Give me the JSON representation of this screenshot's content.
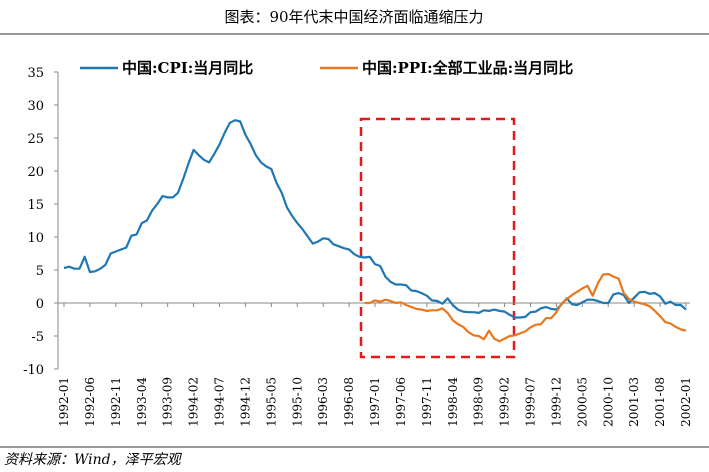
{
  "chart_data": {
    "type": "line",
    "title": "图表：90年代末中国经济面临通缩压力",
    "source": "资料来源：Wind，泽平宏观",
    "categories": [
      "1992-01",
      null,
      null,
      null,
      null,
      "1992-06",
      null,
      null,
      null,
      null,
      "1992-11",
      null,
      null,
      null,
      null,
      "1993-04",
      null,
      null,
      null,
      null,
      "1993-09",
      null,
      null,
      null,
      null,
      "1994-02",
      null,
      null,
      null,
      null,
      "1994-07",
      null,
      null,
      null,
      null,
      "1994-12",
      null,
      null,
      null,
      null,
      "1995-05",
      null,
      null,
      null,
      null,
      "1995-10",
      null,
      null,
      null,
      null,
      "1996-03",
      null,
      null,
      null,
      null,
      "1996-08",
      null,
      null,
      null,
      null,
      "1997-01",
      null,
      null,
      null,
      null,
      "1997-06",
      null,
      null,
      null,
      null,
      "1997-11",
      null,
      null,
      null,
      null,
      "1998-04",
      null,
      null,
      null,
      null,
      "1998-09",
      null,
      null,
      null,
      null,
      "1999-02",
      null,
      null,
      null,
      null,
      "1999-07",
      null,
      null,
      null,
      null,
      "1999-12",
      null,
      null,
      null,
      null,
      "2000-05",
      null,
      null,
      null,
      null,
      "2000-10",
      null,
      null,
      null,
      null,
      "2001-03",
      null,
      null,
      null,
      null,
      "2001-08",
      null,
      null,
      null,
      null,
      "2002-01"
    ],
    "series": [
      {
        "name": "中国:CPI:当月同比",
        "color": "#1f77b4",
        "values": [
          5.3,
          5.5,
          5.2,
          5.2,
          7.0,
          4.7,
          4.8,
          5.2,
          5.8,
          7.5,
          7.8,
          8.1,
          8.4,
          10.2,
          10.4,
          12.1,
          12.5,
          14.0,
          15.0,
          16.2,
          16.0,
          16.0,
          16.7,
          18.8,
          21.1,
          23.2,
          22.4,
          21.7,
          21.3,
          22.6,
          24.0,
          25.8,
          27.3,
          27.7,
          27.5,
          25.5,
          24.1,
          22.4,
          21.3,
          20.7,
          20.3,
          18.2,
          16.7,
          14.5,
          13.2,
          12.1,
          11.2,
          10.1,
          9.0,
          9.3,
          9.8,
          9.7,
          8.9,
          8.6,
          8.3,
          8.1,
          7.4,
          7.0,
          6.9,
          7.0,
          5.9,
          5.6,
          4.0,
          3.2,
          2.8,
          2.8,
          2.7,
          1.9,
          1.8,
          1.5,
          1.1,
          0.4,
          0.3,
          -0.1,
          0.7,
          -0.3,
          -1.0,
          -1.3,
          -1.4,
          -1.4,
          -1.5,
          -1.1,
          -1.2,
          -1.0,
          -1.2,
          -1.3,
          -1.8,
          -2.2,
          -2.2,
          -2.1,
          -1.4,
          -1.3,
          -0.8,
          -0.6,
          -0.9,
          -1.0,
          -0.2,
          0.7,
          -0.2,
          -0.3,
          0.1,
          0.5,
          0.5,
          0.3,
          0.0,
          0.0,
          1.3,
          1.5,
          1.2,
          0.0,
          0.8,
          1.6,
          1.7,
          1.4,
          1.5,
          1.0,
          -0.1,
          0.2,
          -0.3,
          -0.3,
          -1.0
        ]
      },
      {
        "name": "中国:PPI:全部工业品:当月同比",
        "color": "#e8771e",
        "values": [
          null,
          null,
          null,
          null,
          null,
          null,
          null,
          null,
          null,
          null,
          null,
          null,
          null,
          null,
          null,
          null,
          null,
          null,
          null,
          null,
          null,
          null,
          null,
          null,
          null,
          null,
          null,
          null,
          null,
          null,
          null,
          null,
          null,
          null,
          null,
          null,
          null,
          null,
          null,
          null,
          null,
          null,
          null,
          null,
          null,
          null,
          null,
          null,
          null,
          null,
          null,
          null,
          null,
          null,
          null,
          null,
          null,
          null,
          0.0,
          0.0,
          0.4,
          0.2,
          0.5,
          0.3,
          0.0,
          0.1,
          -0.3,
          -0.6,
          -0.9,
          -1.0,
          -1.2,
          -1.1,
          -1.1,
          -0.8,
          -1.5,
          -2.6,
          -3.2,
          -3.6,
          -4.4,
          -4.9,
          -5.0,
          -5.5,
          -4.2,
          -5.4,
          -5.8,
          -5.4,
          -5.0,
          -4.9,
          -4.6,
          -4.3,
          -3.7,
          -3.3,
          -3.2,
          -2.3,
          -2.3,
          -1.4,
          -0.1,
          0.6,
          1.2,
          1.7,
          2.2,
          2.6,
          1.1,
          3.0,
          4.3,
          4.4,
          4.0,
          3.7,
          1.5,
          0.6,
          0.2,
          0.0,
          -0.2,
          -0.5,
          -1.2,
          -2.0,
          -2.9,
          -3.1,
          -3.6,
          -4.0,
          -4.2
        ]
      }
    ],
    "ylim": [
      -10,
      35
    ],
    "yticks": [
      -10,
      -5,
      0,
      5,
      10,
      15,
      20,
      25,
      30,
      35
    ]
  }
}
